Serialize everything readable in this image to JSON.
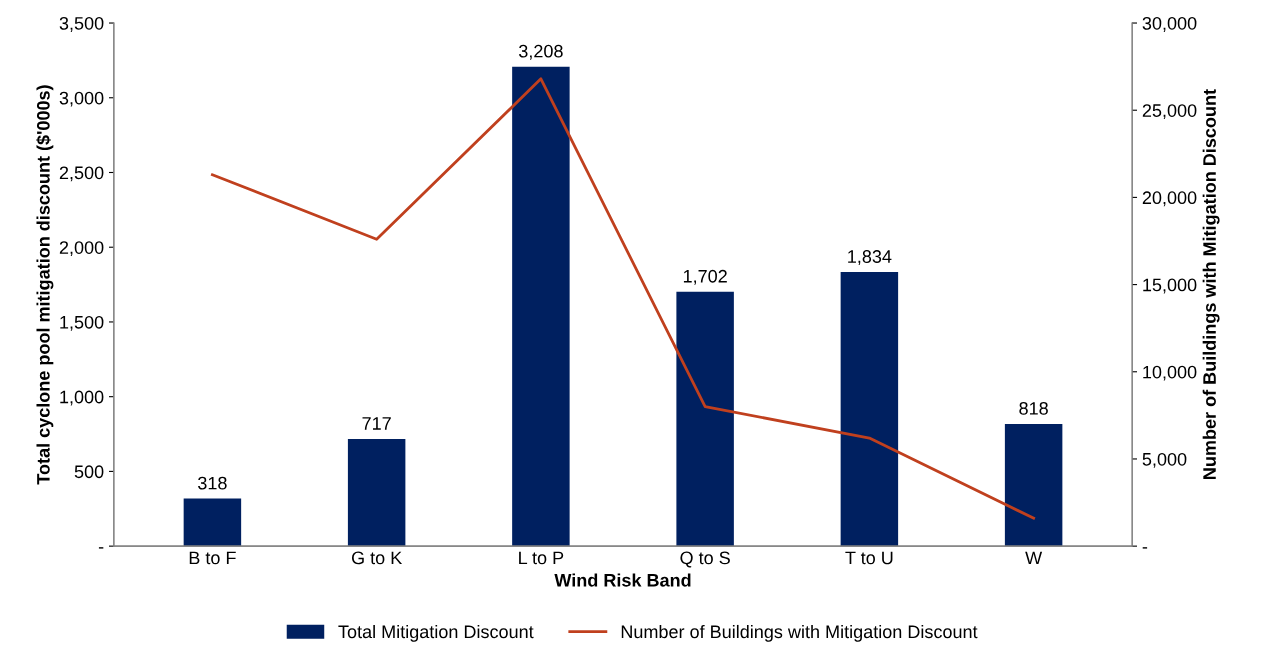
{
  "chart_data": {
    "type": "bar",
    "xlabel": "Wind Risk Band",
    "ylabel": "Total cyclone pool mitigation discount ($'000s)",
    "y2label": "Number of Buildings with Mitigation Discount",
    "categories": [
      "B to F",
      "G to K",
      "L to P",
      "Q to S",
      "T to U",
      "W"
    ],
    "series": [
      {
        "name": "Total Mitigation Discount",
        "color": "#002060",
        "values": [
          318,
          717,
          3208,
          1702,
          1834,
          818
        ],
        "value_labels": [
          "318",
          "717",
          "3,208",
          "1,702",
          "1,834",
          "818"
        ]
      },
      {
        "name": "Number of Buildings with Mitigation Discount",
        "type": "line",
        "axis": "y2",
        "color": "#c0401e",
        "values": [
          21300,
          17600,
          26800,
          8000,
          6200,
          1600
        ]
      }
    ],
    "ylim": [
      0,
      3500
    ],
    "yticks": [
      {
        "value": 0,
        "label": "-"
      },
      {
        "value": 500,
        "label": "500"
      },
      {
        "value": 1000,
        "label": "1,000"
      },
      {
        "value": 1500,
        "label": "1,500"
      },
      {
        "value": 2000,
        "label": "2,000"
      },
      {
        "value": 2500,
        "label": "2,500"
      },
      {
        "value": 3000,
        "label": "3,000"
      },
      {
        "value": 3500,
        "label": "3,500"
      }
    ],
    "y2lim": [
      0,
      30000
    ],
    "y2ticks": [
      {
        "value": 0,
        "label": "-"
      },
      {
        "value": 5000,
        "label": "5,000"
      },
      {
        "value": 10000,
        "label": "10,000"
      },
      {
        "value": 15000,
        "label": "15,000"
      },
      {
        "value": 20000,
        "label": "20,000"
      },
      {
        "value": 25000,
        "label": "25,000"
      },
      {
        "value": 30000,
        "label": "30,000"
      }
    ],
    "grid": false,
    "legend": "bottom",
    "marker": "none",
    "line_style": "solid"
  }
}
